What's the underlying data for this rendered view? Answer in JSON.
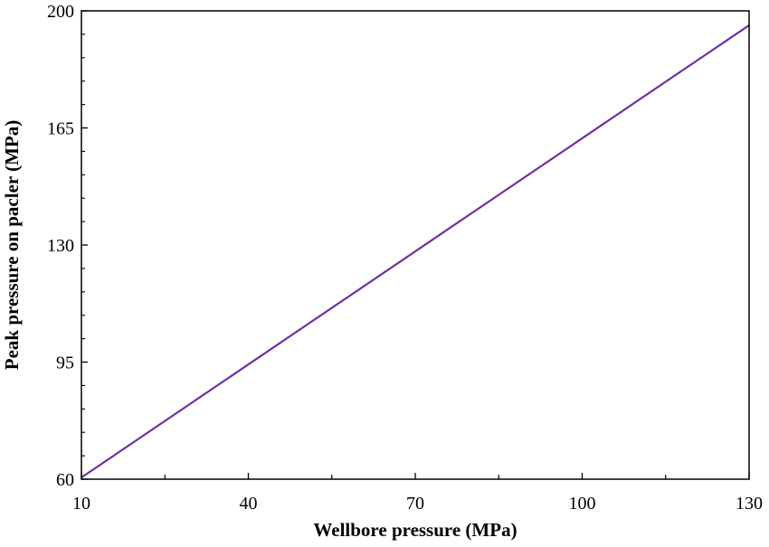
{
  "chart_data": {
    "type": "line",
    "title": "",
    "xlabel": "Wellbore pressure (MPa)",
    "ylabel": "Peak pressure on pacler (MPa)",
    "xlim": [
      10,
      130
    ],
    "ylim": [
      60,
      200
    ],
    "x_ticks": [
      "10",
      "40",
      "70",
      "100",
      "130"
    ],
    "y_ticks": [
      "60",
      "95",
      "130",
      "165",
      "200"
    ],
    "grid": false,
    "legend": "none",
    "series": [
      {
        "color": "#7030a0",
        "x": [
          10,
          40,
          70,
          100,
          130
        ],
        "y": [
          60.5,
          94.3,
          128.1,
          161.9,
          195.7
        ]
      }
    ]
  }
}
